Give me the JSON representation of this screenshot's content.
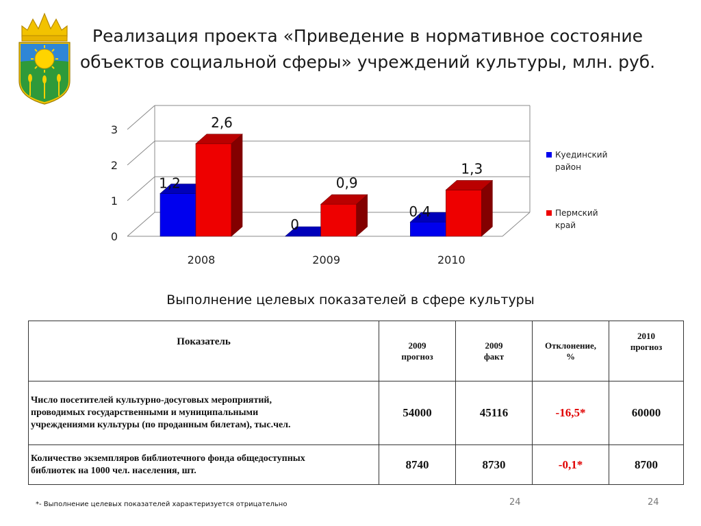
{
  "slide": {
    "title_line1": "Реализация проекта «Приведение в нормативное состояние",
    "title_line2": "объектов социальной сферы» учреждений культуры, млн. руб.",
    "subtitle": "Выполнение целевых показателей в сфере культуры",
    "footnote": "*- Выполнение целевых показателей характеризуется отрицательно",
    "page_number_left": "24",
    "page_number_right": "24"
  },
  "chart_data": {
    "type": "bar",
    "categories": [
      "2008",
      "2009",
      "2010"
    ],
    "series": [
      {
        "name": "Куединский район",
        "values": [
          1.2,
          0,
          0.4
        ],
        "labels": [
          "1,2",
          "0",
          "0,4"
        ],
        "color": "#0000ee"
      },
      {
        "name": "Пермский край",
        "values": [
          2.6,
          0.9,
          1.3
        ],
        "labels": [
          "2,6",
          "0,9",
          "1,3"
        ],
        "color": "#ee0000"
      }
    ],
    "yticks": [
      "0",
      "1",
      "2",
      "3"
    ],
    "ylim": [
      0,
      3
    ],
    "grid": true,
    "legend_position": "right",
    "style": "3d-column"
  },
  "table": {
    "headers": [
      "Показатель",
      "2009 прогноз",
      "2009 факт",
      "Отклонение, %",
      "2010 прогноз"
    ],
    "header_lines": [
      [
        "Показатель"
      ],
      [
        "2009",
        "прогноз"
      ],
      [
        "2009",
        "факт"
      ],
      [
        "Отклонение,",
        "%"
      ],
      [
        "2010",
        "прогноз"
      ]
    ],
    "rows": [
      {
        "label_lines": [
          "Число посетителей культурно-досуговых мероприятий,",
          "проводимых государственными и муниципальными",
          "учреждениями культуры (по проданным билетам), тыс.чел."
        ],
        "forecast_2009": "54000",
        "fact_2009": "45116",
        "deviation": "-16,5*",
        "forecast_2010": "60000"
      },
      {
        "label_lines": [
          "Количество экземпляров библиотечного фонда общедоступных",
          "библиотек на 1000 чел. населения, шт."
        ],
        "forecast_2009": "8740",
        "fact_2009": "8730",
        "deviation": "-0,1*",
        "forecast_2010": "8700"
      }
    ]
  },
  "colors": {
    "series1": "#0000ee",
    "series2": "#ee0000",
    "negative_text": "#e00000"
  }
}
